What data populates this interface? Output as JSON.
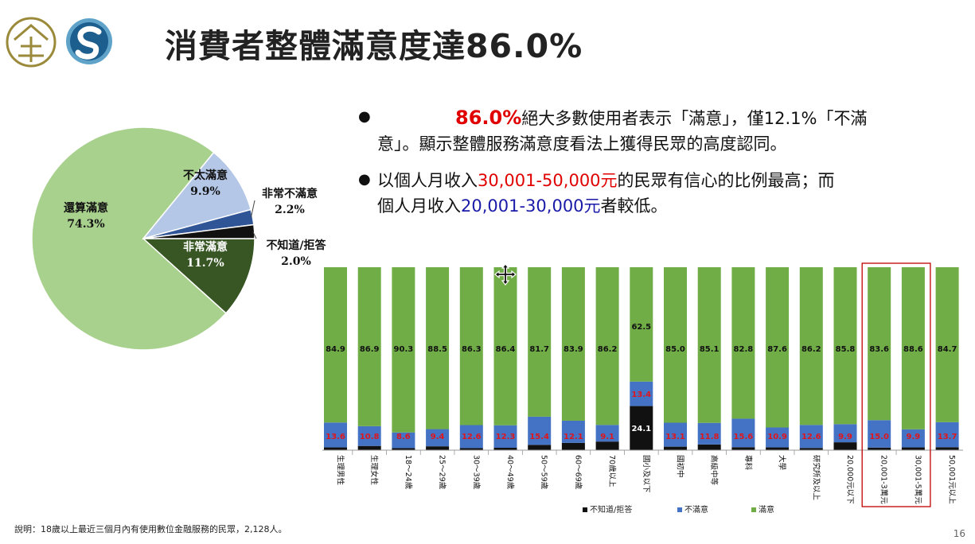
{
  "title": "消費者整體滿意度達86.0%",
  "bullets": {
    "b1": {
      "highlight": "86.0%",
      "text1": "絕大多數使用者表示「滿意」，僅12.1%「不滿",
      "text2": "意」。顯示整體服務滿意度看法上獲得民眾的高度認同。"
    },
    "b2": {
      "pre": "以個人月收入",
      "red": "30,001-50,000元",
      "mid": "的民眾有信心的比例最高；而",
      "pre2": "個人月收入",
      "blue": "20,001-30,000元",
      "post": "者較低。"
    }
  },
  "note": "說明：18歲以上最近三個月內有使用數位金融服務的民眾，2,128人。",
  "page_number": "16",
  "colors": {
    "satisfied": "#70ad47",
    "unsatisfied": "#4472c4",
    "unknown": "#111111",
    "very_satisfied": "#375623",
    "fairly": "#a9d18e",
    "not_very": "#b4c7e7",
    "very_not": "#2f5597",
    "highlight_box": "#c00000"
  },
  "chart_data": [
    {
      "type": "pie",
      "title": "",
      "slices": [
        {
          "label": "非常滿意",
          "value": 11.7,
          "display": "11.7%"
        },
        {
          "label": "還算滿意",
          "value": 74.3,
          "display": "74.3%"
        },
        {
          "label": "不太滿意",
          "value": 9.9,
          "display": "9.9%"
        },
        {
          "label": "非常不滿意",
          "value": 2.2,
          "display": "2.2%"
        },
        {
          "label": "不知道/拒答",
          "value": 2.0,
          "display": "2.0%"
        }
      ]
    },
    {
      "type": "bar",
      "stacked": true,
      "ylim": [
        0,
        100
      ],
      "categories": [
        "生理男性",
        "生理女性",
        "18～24歲",
        "25～29歲",
        "30～39歲",
        "40～49歲",
        "50～59歲",
        "60～69歲",
        "70歲以上",
        "國小及以下",
        "國初中",
        "高級中等",
        "專科",
        "大學",
        "研究所及以上",
        "20,000元以下",
        "20,001-3萬元",
        "30,001-5萬元",
        "50,001元以上"
      ],
      "series": [
        {
          "name": "不知道/拒答",
          "values": [
            1.5,
            2.3,
            1.1,
            2.1,
            1.1,
            1.3,
            2.9,
            4.0,
            4.7,
            24.1,
            1.9,
            3.1,
            1.6,
            1.5,
            1.2,
            4.3,
            1.4,
            1.5,
            1.6
          ]
        },
        {
          "name": "不滿意",
          "values": [
            13.6,
            10.8,
            8.6,
            9.4,
            12.6,
            12.3,
            15.4,
            12.1,
            9.1,
            13.4,
            13.1,
            11.8,
            15.6,
            10.9,
            12.6,
            9.9,
            15.0,
            9.9,
            13.7
          ]
        },
        {
          "name": "滿意",
          "values": [
            84.9,
            86.9,
            90.3,
            88.5,
            86.3,
            86.4,
            81.7,
            83.9,
            86.2,
            62.5,
            85.0,
            85.1,
            82.8,
            87.6,
            86.2,
            85.8,
            83.6,
            88.6,
            84.7
          ]
        }
      ],
      "show_dk_labels": [
        false,
        false,
        false,
        false,
        false,
        false,
        false,
        false,
        false,
        true,
        false,
        false,
        false,
        false,
        false,
        false,
        false,
        false,
        false
      ],
      "highlighted": [
        "20,001-3萬元",
        "30,001-5萬元"
      ],
      "legend": [
        "不知道/拒答",
        "不滿意",
        "滿意"
      ]
    }
  ]
}
